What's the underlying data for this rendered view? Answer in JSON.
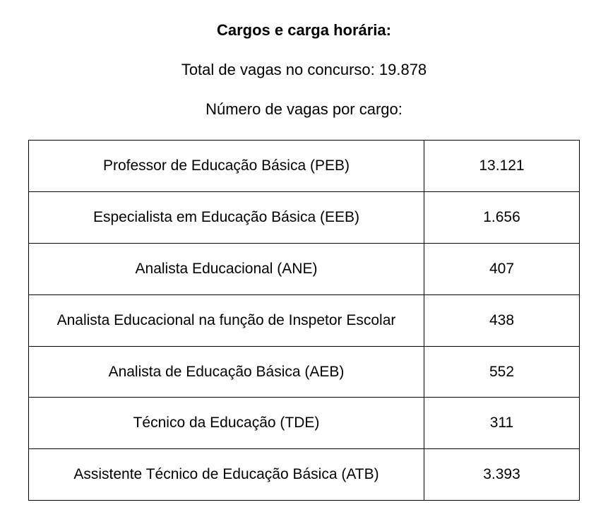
{
  "header": {
    "title": "Cargos e carga horária:",
    "total_vacancies_label": "Total de vagas no concurso: 19.878",
    "vacancies_by_position_label": "Número de vagas por cargo:"
  },
  "table": {
    "type": "table",
    "columns": [
      "position",
      "vacancies"
    ],
    "column_widths": [
      "auto",
      "220px"
    ],
    "border_color": "#000000",
    "background_color": "#ffffff",
    "text_color": "#000000",
    "font_size": 21,
    "rows": [
      {
        "position": "Professor de Educação Básica (PEB)",
        "vacancies": "13.121"
      },
      {
        "position": "Especialista em Educação Básica (EEB)",
        "vacancies": "1.656"
      },
      {
        "position": "Analista Educacional (ANE)",
        "vacancies": "407"
      },
      {
        "position": "Analista Educacional na função de Inspetor Escolar",
        "vacancies": "438"
      },
      {
        "position": "Analista de Educação Básica (AEB)",
        "vacancies": "552"
      },
      {
        "position": "Técnico da Educação (TDE)",
        "vacancies": "311"
      },
      {
        "position": "Assistente Técnico de Educação Básica (ATB)",
        "vacancies": "3.393"
      }
    ]
  }
}
